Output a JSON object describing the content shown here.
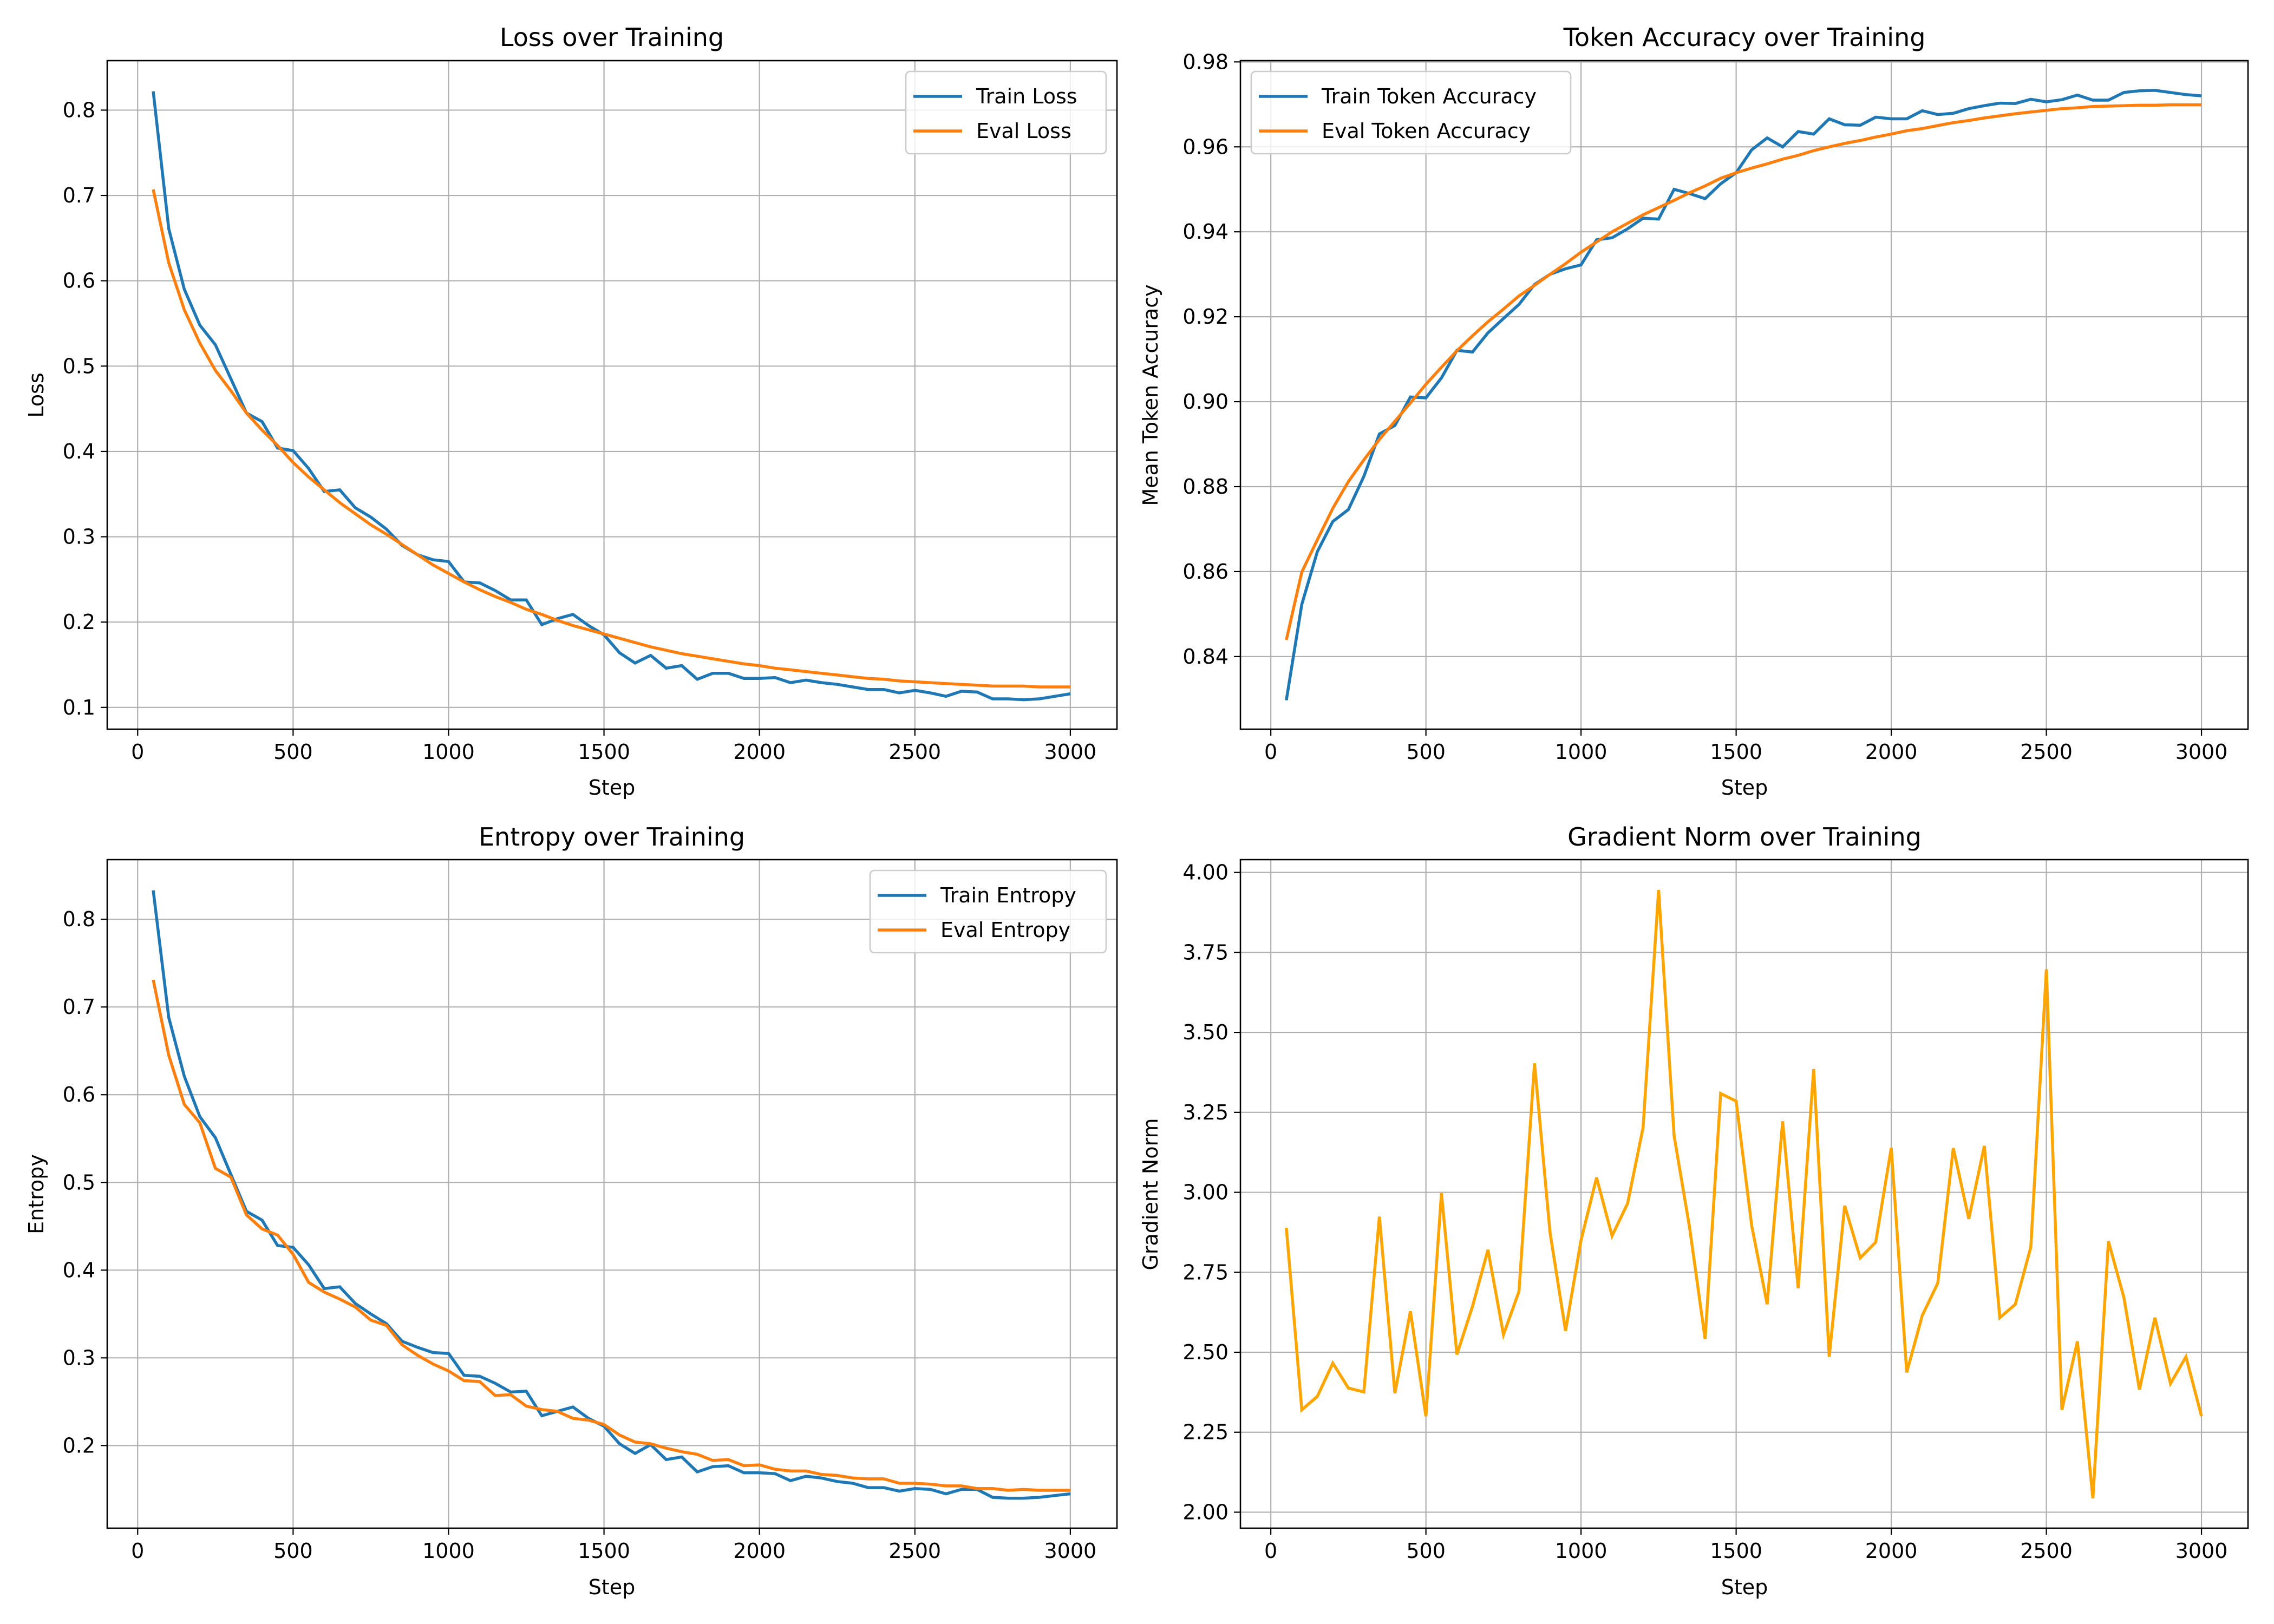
{
  "chart_data": [
    {
      "id": "loss",
      "type": "line",
      "title": "Loss over Training",
      "xlabel": "Step",
      "ylabel": "Loss",
      "xlim": [
        -98,
        3150
      ],
      "ylim": [
        0.0745,
        0.858
      ],
      "xticks": [
        0,
        500,
        1000,
        1500,
        2000,
        2500,
        3000
      ],
      "xtick_labels": [
        "0",
        "500",
        "1000",
        "1500",
        "2000",
        "2500",
        "3000"
      ],
      "yticks": [
        0.1,
        0.2,
        0.3,
        0.4,
        0.5,
        0.6,
        0.7,
        0.8
      ],
      "ytick_labels": [
        "0.1",
        "0.2",
        "0.3",
        "0.4",
        "0.5",
        "0.6",
        "0.7",
        "0.8"
      ],
      "grid": true,
      "legend": "top-right",
      "x": [
        50,
        100,
        150,
        200,
        250,
        300,
        350,
        400,
        450,
        500,
        550,
        600,
        650,
        700,
        750,
        800,
        850,
        900,
        950,
        1000,
        1050,
        1100,
        1150,
        1200,
        1250,
        1300,
        1350,
        1400,
        1450,
        1500,
        1550,
        1600,
        1650,
        1700,
        1750,
        1800,
        1850,
        1900,
        1950,
        2000,
        2050,
        2100,
        2150,
        2200,
        2250,
        2300,
        2350,
        2400,
        2450,
        2500,
        2550,
        2600,
        2650,
        2700,
        2750,
        2800,
        2850,
        2900,
        2950,
        3000
      ],
      "series": [
        {
          "name": "Train Loss",
          "color": "#1f77b4",
          "values": [
            0.822,
            0.661,
            0.59,
            0.548,
            0.525,
            0.485,
            0.445,
            0.435,
            0.404,
            0.401,
            0.38,
            0.353,
            0.355,
            0.334,
            0.323,
            0.309,
            0.29,
            0.279,
            0.273,
            0.271,
            0.247,
            0.246,
            0.237,
            0.226,
            0.226,
            0.197,
            0.204,
            0.209,
            0.196,
            0.185,
            0.164,
            0.152,
            0.161,
            0.146,
            0.149,
            0.133,
            0.14,
            0.14,
            0.134,
            0.134,
            0.135,
            0.129,
            0.132,
            0.129,
            0.127,
            0.124,
            0.121,
            0.121,
            0.117,
            0.12,
            0.117,
            0.113,
            0.119,
            0.118,
            0.11,
            0.11,
            0.109,
            0.11,
            0.113,
            0.116
          ]
        },
        {
          "name": "Eval Loss",
          "color": "#ff7f0e",
          "values": [
            0.707,
            0.621,
            0.566,
            0.527,
            0.495,
            0.471,
            0.445,
            0.425,
            0.407,
            0.387,
            0.37,
            0.355,
            0.34,
            0.327,
            0.314,
            0.303,
            0.291,
            0.279,
            0.267,
            0.257,
            0.247,
            0.238,
            0.23,
            0.223,
            0.215,
            0.209,
            0.202,
            0.196,
            0.191,
            0.186,
            0.181,
            0.176,
            0.171,
            0.167,
            0.163,
            0.16,
            0.157,
            0.154,
            0.151,
            0.149,
            0.146,
            0.144,
            0.142,
            0.14,
            0.138,
            0.136,
            0.134,
            0.133,
            0.131,
            0.13,
            0.129,
            0.128,
            0.127,
            0.126,
            0.125,
            0.125,
            0.125,
            0.124,
            0.124,
            0.124
          ]
        }
      ]
    },
    {
      "id": "accuracy",
      "type": "line",
      "title": "Token Accuracy over Training",
      "xlabel": "Step",
      "ylabel": "Mean Token Accuracy",
      "xlim": [
        -98,
        3150
      ],
      "ylim": [
        0.8229,
        0.9803
      ],
      "xticks": [
        0,
        500,
        1000,
        1500,
        2000,
        2500,
        3000
      ],
      "xtick_labels": [
        "0",
        "500",
        "1000",
        "1500",
        "2000",
        "2500",
        "3000"
      ],
      "yticks": [
        0.84,
        0.86,
        0.88,
        0.9,
        0.92,
        0.94,
        0.96,
        0.98
      ],
      "ytick_labels": [
        "0.84",
        "0.86",
        "0.88",
        "0.90",
        "0.92",
        "0.94",
        "0.96",
        "0.98"
      ],
      "grid": true,
      "legend": "top-left",
      "x": [
        50,
        100,
        150,
        200,
        250,
        300,
        350,
        400,
        450,
        500,
        550,
        600,
        650,
        700,
        750,
        800,
        850,
        900,
        950,
        1000,
        1050,
        1100,
        1150,
        1200,
        1250,
        1300,
        1350,
        1400,
        1450,
        1500,
        1550,
        1600,
        1650,
        1700,
        1750,
        1800,
        1850,
        1900,
        1950,
        2000,
        2050,
        2100,
        2150,
        2200,
        2250,
        2300,
        2350,
        2400,
        2450,
        2500,
        2550,
        2600,
        2650,
        2700,
        2750,
        2800,
        2850,
        2900,
        2950,
        3000
      ],
      "series": [
        {
          "name": "Train Token Accuracy",
          "color": "#1f77b4",
          "values": [
            0.8297,
            0.8523,
            0.8647,
            0.8718,
            0.8746,
            0.8824,
            0.8924,
            0.8944,
            0.9011,
            0.9009,
            0.9056,
            0.9121,
            0.9117,
            0.9162,
            0.9196,
            0.9229,
            0.9276,
            0.93,
            0.9313,
            0.9322,
            0.9381,
            0.9386,
            0.9407,
            0.9432,
            0.943,
            0.95,
            0.949,
            0.9478,
            0.9513,
            0.9539,
            0.9593,
            0.9621,
            0.96,
            0.9636,
            0.963,
            0.9666,
            0.9652,
            0.9651,
            0.967,
            0.9666,
            0.9666,
            0.9685,
            0.9676,
            0.9679,
            0.969,
            0.9697,
            0.9703,
            0.9702,
            0.9712,
            0.9706,
            0.9711,
            0.9722,
            0.971,
            0.971,
            0.9728,
            0.9732,
            0.9733,
            0.9728,
            0.9723,
            0.972
          ]
        },
        {
          "name": "Eval Token Accuracy",
          "color": "#ff7f0e",
          "values": [
            0.8439,
            0.8599,
            0.8675,
            0.8749,
            0.8812,
            0.8863,
            0.8911,
            0.8954,
            0.8997,
            0.9041,
            0.9081,
            0.912,
            0.9155,
            0.9188,
            0.9218,
            0.9249,
            0.9274,
            0.93,
            0.9325,
            0.9352,
            0.9376,
            0.94,
            0.942,
            0.944,
            0.9457,
            0.9474,
            0.9492,
            0.9508,
            0.9526,
            0.9539,
            0.955,
            0.956,
            0.9571,
            0.958,
            0.9591,
            0.96,
            0.9608,
            0.9615,
            0.9623,
            0.963,
            0.9638,
            0.9643,
            0.965,
            0.9657,
            0.9662,
            0.9668,
            0.9673,
            0.9678,
            0.9682,
            0.9686,
            0.969,
            0.9692,
            0.9695,
            0.9696,
            0.9697,
            0.9698,
            0.9698,
            0.9699,
            0.9699,
            0.9699
          ]
        }
      ]
    },
    {
      "id": "entropy",
      "type": "line",
      "title": "Entropy over Training",
      "xlabel": "Step",
      "ylabel": "Entropy",
      "xlim": [
        -98,
        3150
      ],
      "ylim": [
        0.1058,
        0.868
      ],
      "xticks": [
        0,
        500,
        1000,
        1500,
        2000,
        2500,
        3000
      ],
      "xtick_labels": [
        "0",
        "500",
        "1000",
        "1500",
        "2000",
        "2500",
        "3000"
      ],
      "yticks": [
        0.2,
        0.3,
        0.4,
        0.5,
        0.6,
        0.7,
        0.8
      ],
      "ytick_labels": [
        "0.2",
        "0.3",
        "0.4",
        "0.5",
        "0.6",
        "0.7",
        "0.8"
      ],
      "grid": true,
      "legend": "top-right",
      "x": [
        50,
        100,
        150,
        200,
        250,
        300,
        350,
        400,
        450,
        500,
        550,
        600,
        650,
        700,
        750,
        800,
        850,
        900,
        950,
        1000,
        1050,
        1100,
        1150,
        1200,
        1250,
        1300,
        1350,
        1400,
        1450,
        1500,
        1550,
        1600,
        1650,
        1700,
        1750,
        1800,
        1850,
        1900,
        1950,
        2000,
        2050,
        2100,
        2150,
        2200,
        2250,
        2300,
        2350,
        2400,
        2450,
        2500,
        2550,
        2600,
        2650,
        2700,
        2750,
        2800,
        2850,
        2900,
        2950,
        3000
      ],
      "series": [
        {
          "name": "Train Entropy",
          "color": "#1f77b4",
          "values": [
            0.833,
            0.688,
            0.621,
            0.575,
            0.551,
            0.509,
            0.467,
            0.457,
            0.428,
            0.426,
            0.406,
            0.379,
            0.381,
            0.362,
            0.35,
            0.339,
            0.319,
            0.312,
            0.306,
            0.305,
            0.28,
            0.279,
            0.271,
            0.261,
            0.262,
            0.234,
            0.239,
            0.244,
            0.231,
            0.222,
            0.202,
            0.191,
            0.201,
            0.184,
            0.187,
            0.17,
            0.176,
            0.177,
            0.169,
            0.169,
            0.168,
            0.16,
            0.165,
            0.163,
            0.159,
            0.157,
            0.152,
            0.152,
            0.148,
            0.151,
            0.15,
            0.145,
            0.15,
            0.15,
            0.141,
            0.14,
            0.14,
            0.141,
            0.143,
            0.145
          ]
        },
        {
          "name": "Eval Entropy",
          "color": "#ff7f0e",
          "values": [
            0.731,
            0.645,
            0.589,
            0.568,
            0.516,
            0.506,
            0.463,
            0.447,
            0.44,
            0.418,
            0.386,
            0.375,
            0.367,
            0.358,
            0.343,
            0.337,
            0.315,
            0.303,
            0.293,
            0.285,
            0.274,
            0.273,
            0.257,
            0.258,
            0.245,
            0.241,
            0.239,
            0.231,
            0.229,
            0.224,
            0.212,
            0.204,
            0.202,
            0.197,
            0.193,
            0.19,
            0.183,
            0.184,
            0.177,
            0.178,
            0.173,
            0.171,
            0.171,
            0.167,
            0.166,
            0.163,
            0.162,
            0.162,
            0.157,
            0.157,
            0.156,
            0.154,
            0.154,
            0.151,
            0.151,
            0.149,
            0.15,
            0.149,
            0.149,
            0.149
          ]
        }
      ]
    },
    {
      "id": "grad_norm",
      "type": "line",
      "title": "Gradient Norm over Training",
      "xlabel": "Step",
      "ylabel": "Gradient Norm",
      "xlim": [
        -98,
        3150
      ],
      "ylim": [
        1.95,
        4.04
      ],
      "xticks": [
        0,
        500,
        1000,
        1500,
        2000,
        2500,
        3000
      ],
      "xtick_labels": [
        "0",
        "500",
        "1000",
        "1500",
        "2000",
        "2500",
        "3000"
      ],
      "yticks": [
        2.0,
        2.25,
        2.5,
        2.75,
        3.0,
        3.25,
        3.5,
        3.75,
        4.0
      ],
      "ytick_labels": [
        "2.00",
        "2.25",
        "2.50",
        "2.75",
        "3.00",
        "3.25",
        "3.50",
        "3.75",
        "4.00"
      ],
      "grid": true,
      "legend": "none",
      "x": [
        50,
        100,
        150,
        200,
        250,
        300,
        350,
        400,
        450,
        500,
        550,
        600,
        650,
        700,
        750,
        800,
        850,
        900,
        950,
        1000,
        1050,
        1100,
        1150,
        1200,
        1250,
        1300,
        1350,
        1400,
        1450,
        1500,
        1550,
        1600,
        1650,
        1700,
        1750,
        1800,
        1850,
        1900,
        1950,
        2000,
        2050,
        2100,
        2150,
        2200,
        2250,
        2300,
        2350,
        2400,
        2450,
        2500,
        2550,
        2600,
        2650,
        2700,
        2750,
        2800,
        2850,
        2900,
        2950,
        3000
      ],
      "series": [
        {
          "name": "Gradient Norm",
          "color": "#ffa500",
          "values": [
            2.889,
            2.32,
            2.362,
            2.466,
            2.388,
            2.376,
            2.924,
            2.372,
            2.628,
            2.3,
            2.997,
            2.493,
            2.643,
            2.82,
            2.555,
            2.69,
            3.403,
            2.875,
            2.567,
            2.85,
            3.046,
            2.864,
            2.965,
            3.202,
            3.945,
            3.177,
            2.889,
            2.541,
            3.309,
            3.285,
            2.896,
            2.65,
            3.222,
            2.7,
            3.385,
            2.486,
            2.958,
            2.795,
            2.844,
            3.139,
            2.437,
            2.615,
            2.716,
            3.138,
            2.917,
            3.145,
            2.608,
            2.65,
            2.829,
            3.697,
            2.32,
            2.534,
            2.043,
            2.847,
            2.671,
            2.383,
            2.608,
            2.402,
            2.486,
            2.3
          ]
        }
      ]
    }
  ]
}
